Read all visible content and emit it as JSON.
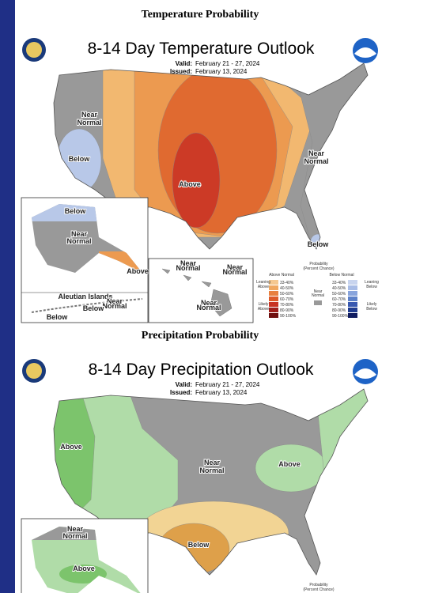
{
  "temperature": {
    "heading": "Temperature Probability",
    "title": "8-14 Day Temperature Outlook",
    "valid_label": "Valid:",
    "valid": "February 21 - 27, 2024",
    "issued_label": "Issued:",
    "issued": "February 13, 2024",
    "regions": [
      {
        "lines": [
          "Near",
          "Normal"
        ]
      },
      {
        "lines": [
          "Below"
        ]
      },
      {
        "lines": [
          "Above"
        ]
      },
      {
        "lines": [
          "Near",
          "Normal"
        ]
      },
      {
        "lines": [
          "Below"
        ]
      }
    ],
    "alaska": [
      {
        "lines": [
          "Below"
        ]
      },
      {
        "lines": [
          "Near",
          "Normal"
        ]
      },
      {
        "lines": [
          "Above"
        ]
      }
    ],
    "aleutian": {
      "title": "Aleutian Islands",
      "labels": [
        {
          "lines": [
            "Near",
            "Normal"
          ]
        },
        {
          "lines": [
            "Below"
          ]
        },
        {
          "lines": [
            "Below"
          ]
        }
      ]
    },
    "hawaii": [
      {
        "lines": [
          "Near",
          "Normal"
        ]
      },
      {
        "lines": [
          "Near",
          "Normal"
        ]
      },
      {
        "lines": [
          "Near",
          "Normal"
        ]
      }
    ],
    "legend": {
      "title": [
        "Probability",
        "(Percent Chance)"
      ],
      "above": "Above Normal",
      "below": "Below Normal",
      "near": [
        "Near",
        "Normal"
      ],
      "leaning_above": [
        "Leaning",
        "Above"
      ],
      "likely_above": [
        "Likely",
        "Above"
      ],
      "leaning_below": [
        "Leaning",
        "Below"
      ],
      "likely_below": [
        "Likely",
        "Below"
      ],
      "ranges": [
        "33-40%",
        "40-50%",
        "50-60%",
        "60-70%",
        "70-80%",
        "80-90%",
        "90-100%"
      ]
    }
  },
  "precipitation": {
    "heading": "Precipitation Probability",
    "title": "8-14 Day Precipitation Outlook",
    "valid_label": "Valid:",
    "valid": "February 21 - 27, 2024",
    "issued_label": "Issued:",
    "issued": "February 13, 2024",
    "regions": [
      {
        "lines": [
          "Above"
        ]
      },
      {
        "lines": [
          "Near",
          "Normal"
        ]
      },
      {
        "lines": [
          "Above"
        ]
      },
      {
        "lines": [
          "Below"
        ]
      }
    ],
    "alaska": [
      {
        "lines": [
          "Near",
          "Normal"
        ]
      },
      {
        "lines": [
          "Above"
        ]
      }
    ],
    "legend_title": [
      "Probability",
      "(Percent Chance)"
    ]
  }
}
